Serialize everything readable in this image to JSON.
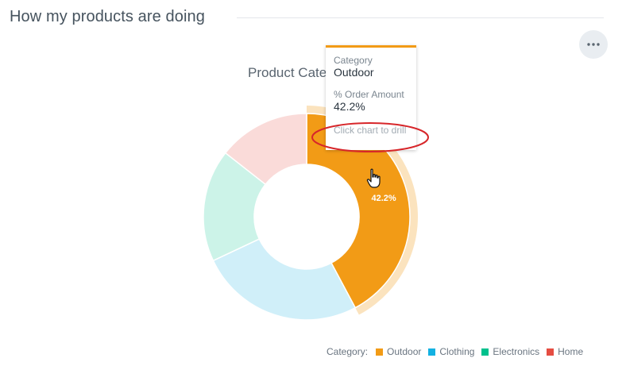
{
  "header": {
    "title": "How my products are doing"
  },
  "menu": {
    "icon": "more-horizontal-icon"
  },
  "chart_data": {
    "type": "pie",
    "title": "Product Cate",
    "series_label": "% Order Amount",
    "categories": [
      "Outdoor",
      "Clothing",
      "Electronics",
      "Home"
    ],
    "values": [
      42.2,
      25.8,
      17.6,
      14.4
    ],
    "colors": [
      "#f29b16",
      "#13b1e2",
      "#00c18d",
      "#e54d42"
    ],
    "highlighted": "Outdoor",
    "data_labels": [
      "42.2%",
      "",
      "",
      ""
    ]
  },
  "tooltip": {
    "category_label": "Category",
    "category_value": "Outdoor",
    "metric_label": "% Order Amount",
    "metric_value": "42.2%",
    "hint": "Click chart to drill"
  },
  "legend": {
    "title": "Category:",
    "items": [
      {
        "label": "Outdoor",
        "color": "#f29b16"
      },
      {
        "label": "Clothing",
        "color": "#13b1e2"
      },
      {
        "label": "Electronics",
        "color": "#00c18d"
      },
      {
        "label": "Home",
        "color": "#e54d42"
      }
    ]
  }
}
